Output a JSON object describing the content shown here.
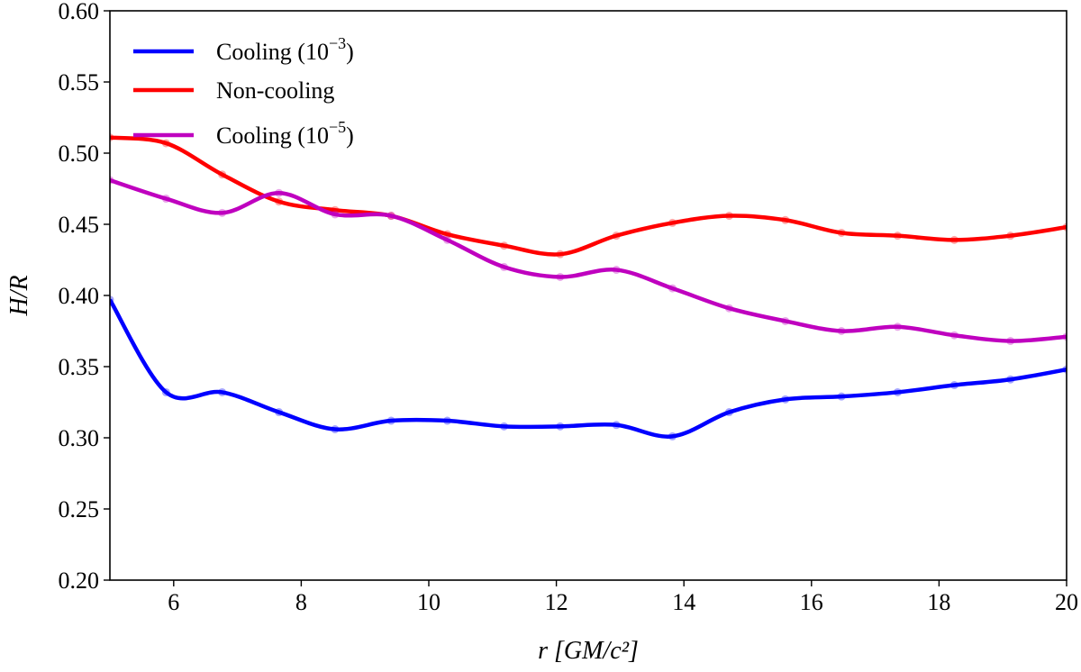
{
  "chart_data": {
    "type": "line",
    "xlabel": "r [GM/c²]",
    "xlabel_parts": {
      "var": "r",
      "open": "[",
      "body": "GM/c",
      "sup": "2",
      "close": "]"
    },
    "ylabel": "H/R",
    "xlim": [
      5,
      20
    ],
    "ylim": [
      0.2,
      0.6
    ],
    "x_ticks": [
      "6",
      "8",
      "10",
      "12",
      "14",
      "16",
      "18",
      "20"
    ],
    "y_ticks": [
      "0.20",
      "0.25",
      "0.30",
      "0.35",
      "0.40",
      "0.45",
      "0.50",
      "0.55",
      "0.60"
    ],
    "grid": false,
    "legend_position": "top-left",
    "x": [
      5.0,
      5.88,
      6.76,
      7.65,
      8.53,
      9.41,
      10.29,
      11.18,
      12.06,
      12.94,
      13.82,
      14.71,
      15.59,
      16.47,
      17.35,
      18.24,
      19.12,
      20.0
    ],
    "series": [
      {
        "name": "Cooling (10⁻³)",
        "label_base": "Cooling (10",
        "label_sup": "−3",
        "label_end": ")",
        "color": "#0000ff",
        "values": [
          0.397,
          0.332,
          0.332,
          0.318,
          0.306,
          0.312,
          0.312,
          0.308,
          0.308,
          0.309,
          0.301,
          0.318,
          0.327,
          0.329,
          0.332,
          0.337,
          0.341,
          0.348
        ]
      },
      {
        "name": "Non-cooling",
        "label_base": "Non-cooling",
        "label_sup": "",
        "label_end": "",
        "color": "#ff0000",
        "values": [
          0.511,
          0.507,
          0.485,
          0.466,
          0.46,
          0.456,
          0.443,
          0.435,
          0.429,
          0.442,
          0.451,
          0.456,
          0.453,
          0.444,
          0.442,
          0.439,
          0.442,
          0.448
        ]
      },
      {
        "name": "Cooling (10⁻⁵)",
        "label_base": "Cooling (10",
        "label_sup": "−5",
        "label_end": ")",
        "color": "#bf00bf",
        "values": [
          0.481,
          0.468,
          0.458,
          0.472,
          0.457,
          0.456,
          0.439,
          0.42,
          0.413,
          0.418,
          0.405,
          0.391,
          0.382,
          0.375,
          0.378,
          0.372,
          0.368,
          0.371
        ]
      }
    ]
  }
}
